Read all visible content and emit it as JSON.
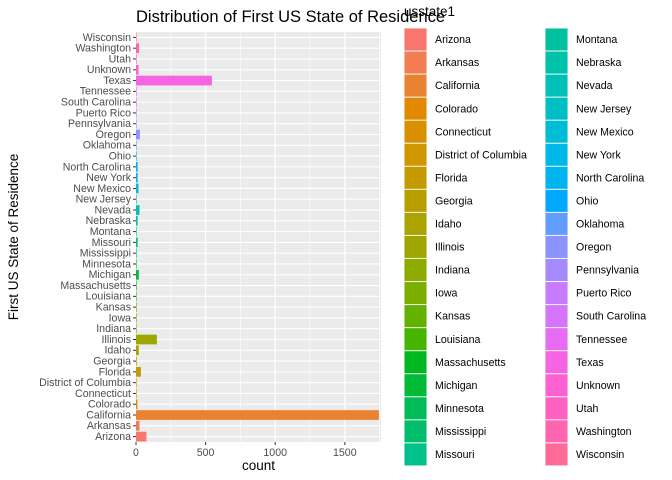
{
  "chart_data": {
    "type": "bar",
    "orientation": "horizontal",
    "title": "Distribution of First US State of Residence",
    "xlabel": "count",
    "ylabel": "First US State of Residence",
    "legend_title": "usstate1",
    "legend_position": "right",
    "grid": true,
    "xlim": [
      0,
      1760
    ],
    "x_ticks": [
      0,
      500,
      1000,
      1500
    ],
    "categories": [
      "Arizona",
      "Arkansas",
      "California",
      "Colorado",
      "Connecticut",
      "District of Columbia",
      "Florida",
      "Georgia",
      "Idaho",
      "Illinois",
      "Indiana",
      "Iowa",
      "Kansas",
      "Louisiana",
      "Massachusetts",
      "Michigan",
      "Minnesota",
      "Mississippi",
      "Missouri",
      "Montana",
      "Nebraska",
      "Nevada",
      "New Jersey",
      "New Mexico",
      "New York",
      "North Carolina",
      "Ohio",
      "Oklahoma",
      "Oregon",
      "Pennsylvania",
      "Puerto Rico",
      "South Carolina",
      "Tennessee",
      "Texas",
      "Unknown",
      "Utah",
      "Washington",
      "Wisconsin"
    ],
    "values": [
      75,
      25,
      1745,
      10,
      2,
      2,
      35,
      5,
      20,
      150,
      2,
      2,
      2,
      2,
      2,
      20,
      2,
      2,
      12,
      2,
      12,
      25,
      2,
      18,
      12,
      12,
      2,
      2,
      28,
      2,
      2,
      2,
      2,
      545,
      18,
      2,
      22,
      2
    ],
    "colors": [
      "#F8766D",
      "#F27D52",
      "#EA8331",
      "#E18A00",
      "#D89000",
      "#CE9700",
      "#C49A00",
      "#B79F00",
      "#ABA300",
      "#9DA700",
      "#8EAB00",
      "#7CAE00",
      "#64B200",
      "#45B500",
      "#00B81F",
      "#00BA38",
      "#00BC59",
      "#00BE6C",
      "#00C08B",
      "#00C19F",
      "#00C1AA",
      "#00C0B8",
      "#00BFC4",
      "#00BCD4",
      "#00B8E7",
      "#00B4F0",
      "#00A9FF",
      "#619CFF",
      "#8B93FF",
      "#A58AFF",
      "#C77CFF",
      "#D575FE",
      "#E76BF3",
      "#F564E3",
      "#FD61D1",
      "#FF61C3",
      "#FF64B0",
      "#FF6A98"
    ]
  }
}
